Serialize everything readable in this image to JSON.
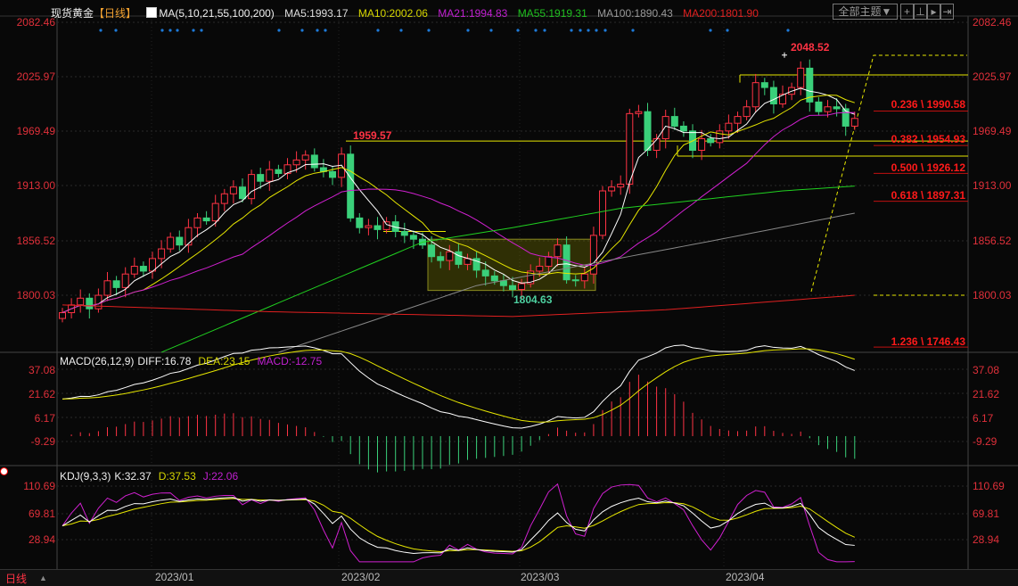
{
  "header": {
    "instrument": "现货黄金",
    "period": "【日线】",
    "ma_label": "MA(5,10,21,55,100,200)",
    "ma5": "MA5:1993.17",
    "ma10": "MA10:2002.06",
    "ma21": "MA21:1994.83",
    "ma55": "MA55:1919.31",
    "ma100": "MA100:1890.43",
    "ma200": "MA200:1801.90",
    "theme_button": "全部主题▼"
  },
  "macd_header": {
    "label": "MACD(26,12,9)",
    "diff": "DIFF:16.78",
    "dea": "DEA:23.15",
    "macd": "MACD:-12.75"
  },
  "kdj_header": {
    "label": "KDJ(9,3,3)",
    "k": "K:32.37",
    "d": "D:37.53",
    "j": "J:22.06"
  },
  "footer": {
    "period_tab": "日线",
    "months": [
      "2023/01",
      "2023/02",
      "2023/03",
      "2023/04"
    ]
  },
  "colors": {
    "up": "#ff3344",
    "down": "#3ad07a",
    "ma5": "#ffffff",
    "ma10": "#e6e600",
    "ma21": "#d020d0",
    "ma55": "#20d020",
    "ma100": "#888888",
    "ma200": "#e02020",
    "axis": "#e0303a"
  },
  "chart_data": {
    "type": "candlestick",
    "price_axis": {
      "ticks": [
        "2082.46",
        "2025.97",
        "1969.49",
        "1913.00",
        "1856.52",
        "1800.03"
      ],
      "ylim": [
        1800.03,
        2082.46
      ]
    },
    "annotations": {
      "high": "2048.52",
      "pivot_high": "1959.57",
      "low": "1804.63"
    },
    "fib_levels": [
      {
        "label": "0.236 \\ 1990.58",
        "price": 1990.58
      },
      {
        "label": "0.382 \\ 1954.93",
        "price": 1954.93
      },
      {
        "label": "0.500 \\ 1926.12",
        "price": 1926.12
      },
      {
        "label": "0.618 \\ 1897.31",
        "price": 1897.31
      },
      {
        "label": "1.236 \\ 1746.43",
        "price": 1746.43
      }
    ],
    "horizontal_lines": [
      1959.57,
      2028,
      1944
    ],
    "closes": [
      1782,
      1790,
      1797,
      1786,
      1800,
      1815,
      1808,
      1822,
      1830,
      1825,
      1838,
      1848,
      1860,
      1852,
      1870,
      1880,
      1877,
      1895,
      1905,
      1912,
      1900,
      1925,
      1918,
      1930,
      1926,
      1935,
      1940,
      1945,
      1932,
      1928,
      1922,
      1946,
      1880,
      1870,
      1872,
      1868,
      1876,
      1866,
      1862,
      1858,
      1852,
      1840,
      1836,
      1845,
      1832,
      1838,
      1826,
      1820,
      1815,
      1810,
      1806,
      1812,
      1825,
      1830,
      1840,
      1852,
      1816,
      1815,
      1822,
      1862,
      1908,
      1912,
      1915,
      1988,
      1990,
      1950,
      1962,
      1985,
      1975,
      1970,
      1950,
      1962,
      1958,
      1970,
      1978,
      1985,
      1995,
      2020,
      2015,
      1998,
      2008,
      2015,
      2035,
      2000,
      1990,
      1995,
      1993,
      1975,
      1983
    ],
    "ma55": [
      [
        11,
        1741
      ],
      [
        40,
        1855
      ],
      [
        50,
        1870
      ],
      [
        62,
        1890
      ],
      [
        80,
        1908
      ],
      [
        88,
        1913
      ]
    ],
    "ma100": [
      [
        24,
        1741
      ],
      [
        46,
        1810
      ],
      [
        60,
        1835
      ],
      [
        72,
        1856
      ],
      [
        88,
        1885
      ]
    ],
    "ma200": [
      [
        0,
        1790
      ],
      [
        23,
        1783
      ],
      [
        50,
        1778
      ],
      [
        67,
        1785
      ],
      [
        88,
        1800
      ]
    ],
    "macd_axis": {
      "ticks": [
        "37.08",
        "21.62",
        "6.17",
        "-9.29"
      ]
    },
    "kdj_axis": {
      "ticks": [
        "110.69",
        "69.81",
        "28.94"
      ]
    }
  }
}
